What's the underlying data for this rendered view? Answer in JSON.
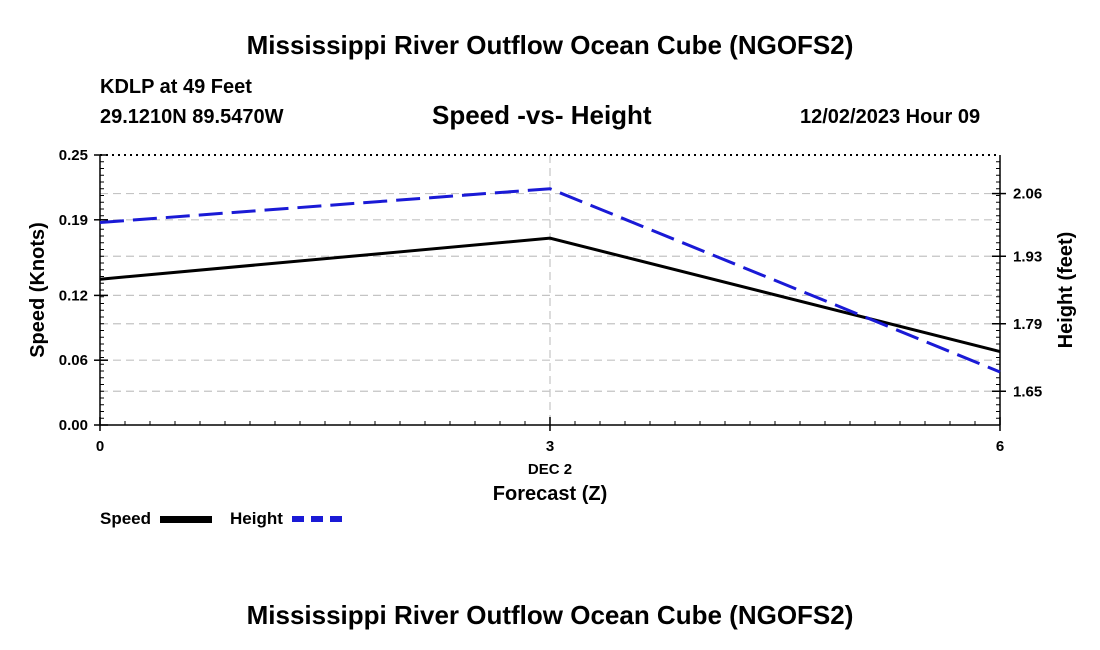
{
  "page": {
    "title_top": "Mississippi River Outflow Ocean Cube (NGOFS2)",
    "title_bottom": "Mississippi River Outflow Ocean Cube (NGOFS2)",
    "station": "KDLP at 49 Feet",
    "coords": "29.1210N  89.5470W",
    "datetime": "12/02/2023 Hour 09"
  },
  "chart_data": {
    "type": "line",
    "title": "Speed -vs- Height",
    "x": [
      0,
      3,
      6
    ],
    "x_tick_labels": [
      "0",
      "3",
      "6"
    ],
    "x_date_label": "DEC 2",
    "xlabel": "Forecast (Z)",
    "xlim": [
      0,
      6
    ],
    "ylabel_left": "Speed (Knots)",
    "ylabel_right": "Height (feet)",
    "ylim_left": [
      0,
      0.25
    ],
    "ylim_right": [
      1.58,
      2.14
    ],
    "left_ticks": [
      "0.00",
      "0.06",
      "0.12",
      "0.19",
      "0.25"
    ],
    "right_ticks": [
      "1.65",
      "1.79",
      "1.93",
      "2.06"
    ],
    "grid": true,
    "legend_position": "bottom-left",
    "series": [
      {
        "name": "Speed",
        "axis": "left",
        "values": [
          0.135,
          0.173,
          0.068
        ],
        "color": "#000000",
        "dash": "solid"
      },
      {
        "name": "Height",
        "axis": "right",
        "values": [
          2.0,
          2.07,
          1.69
        ],
        "color": "#1a1ad6",
        "dash": "dashed"
      }
    ]
  }
}
